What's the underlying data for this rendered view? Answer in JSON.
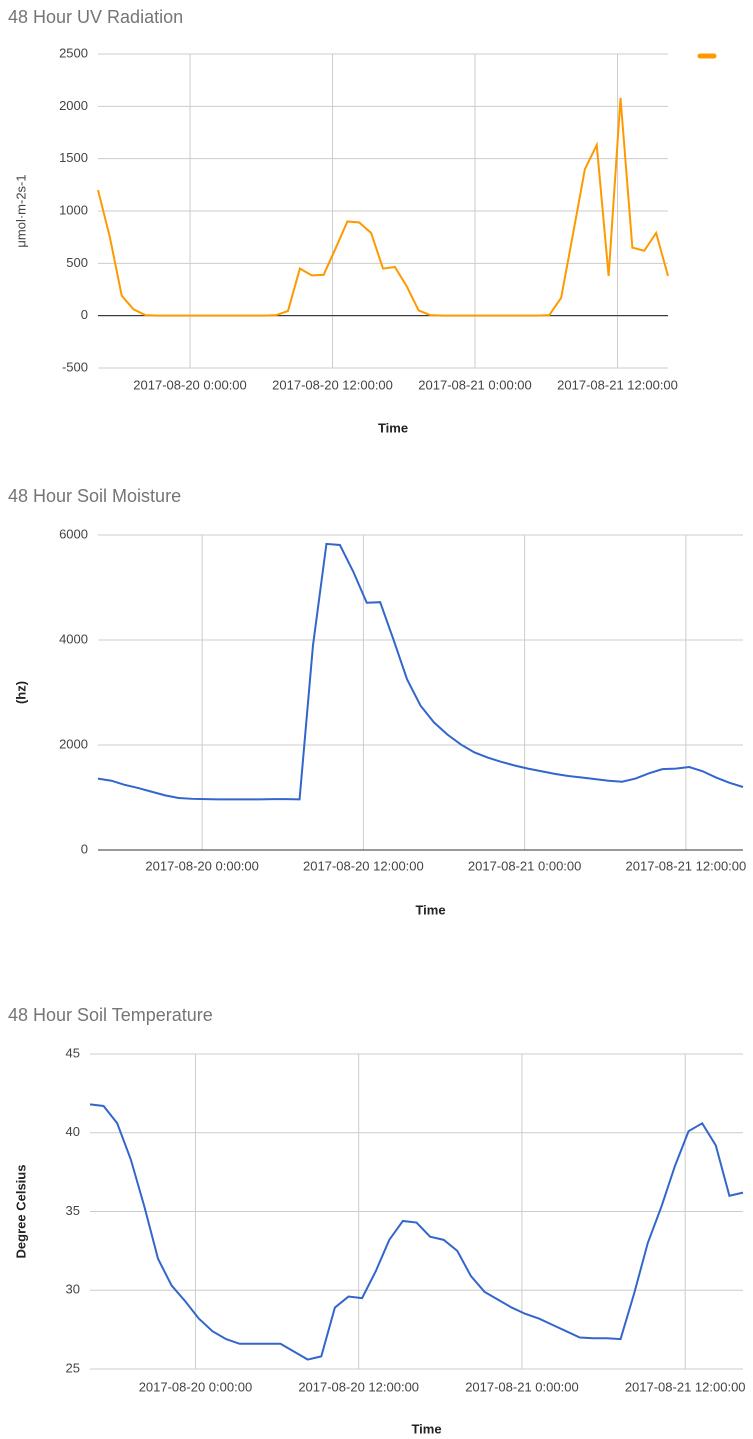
{
  "chart_data": [
    {
      "type": "line",
      "title": "48 Hour UV Radiation",
      "x_label": "Time",
      "y_label": "μmol·m-2s-1",
      "legend": "top-right",
      "x": [
        "2017-08-19 16:15:00",
        "2017-08-19 17:15:00",
        "2017-08-19 18:15:00",
        "2017-08-19 19:15:00",
        "2017-08-19 20:15:00",
        "2017-08-19 21:15:00",
        "2017-08-19 22:15:00",
        "2017-08-19 23:15:00",
        "2017-08-20 00:15:00",
        "2017-08-20 01:15:00",
        "2017-08-20 02:15:00",
        "2017-08-20 03:15:00",
        "2017-08-20 04:15:00",
        "2017-08-20 05:15:00",
        "2017-08-20 06:15:00",
        "2017-08-20 07:15:00",
        "2017-08-20 08:15:00",
        "2017-08-20 09:15:00",
        "2017-08-20 10:15:00",
        "2017-08-20 11:15:00",
        "2017-08-20 12:15:00",
        "2017-08-20 13:15:00",
        "2017-08-20 14:15:00",
        "2017-08-20 15:15:00",
        "2017-08-20 16:15:00",
        "2017-08-20 17:15:00",
        "2017-08-20 18:15:00",
        "2017-08-20 19:15:00",
        "2017-08-20 20:15:00",
        "2017-08-20 21:15:00",
        "2017-08-20 22:15:00",
        "2017-08-20 23:15:00",
        "2017-08-21 00:15:00",
        "2017-08-21 01:15:00",
        "2017-08-21 02:15:00",
        "2017-08-21 03:15:00",
        "2017-08-21 04:15:00",
        "2017-08-21 05:15:00",
        "2017-08-21 06:15:00",
        "2017-08-21 07:15:00",
        "2017-08-21 08:15:00",
        "2017-08-21 09:15:00",
        "2017-08-21 10:15:00",
        "2017-08-21 11:15:00",
        "2017-08-21 12:15:00",
        "2017-08-21 13:15:00",
        "2017-08-21 14:15:00",
        "2017-08-21 15:15:00",
        "2017-08-21 16:15:00"
      ],
      "series": [
        {
          "color": "#ff9900",
          "values": [
            1200,
            750,
            190,
            60,
            5,
            0,
            0,
            0,
            0,
            0,
            0,
            0,
            0,
            0,
            0,
            5,
            45,
            450,
            385,
            390,
            640,
            900,
            890,
            790,
            450,
            465,
            280,
            50,
            5,
            0,
            0,
            0,
            0,
            0,
            0,
            0,
            0,
            0,
            5,
            170,
            780,
            1400,
            1630,
            380,
            2080,
            650,
            620,
            790,
            380
          ]
        }
      ],
      "xlim": [
        "2017-08-19 16:15:00",
        "2017-08-21 16:15:00"
      ],
      "xticks": [
        "2017-08-20 0:00:00",
        "2017-08-20 12:00:00",
        "2017-08-21 0:00:00",
        "2017-08-21 12:00:00"
      ],
      "ylim": [
        -500,
        2500
      ],
      "yticks": [
        -500,
        0,
        500,
        1000,
        1500,
        2000,
        2500
      ],
      "grid": true
    },
    {
      "type": "line",
      "title": "48 Hour Soil Moisture",
      "x_label": "Time",
      "y_label": "(hz)",
      "x": [
        "2017-08-19 16:15:00",
        "2017-08-19 17:15:00",
        "2017-08-19 18:15:00",
        "2017-08-19 19:15:00",
        "2017-08-19 20:15:00",
        "2017-08-19 21:15:00",
        "2017-08-19 22:15:00",
        "2017-08-19 23:15:00",
        "2017-08-20 00:15:00",
        "2017-08-20 01:15:00",
        "2017-08-20 02:15:00",
        "2017-08-20 03:15:00",
        "2017-08-20 04:15:00",
        "2017-08-20 05:15:00",
        "2017-08-20 06:15:00",
        "2017-08-20 07:15:00",
        "2017-08-20 08:15:00",
        "2017-08-20 09:15:00",
        "2017-08-20 10:15:00",
        "2017-08-20 11:15:00",
        "2017-08-20 12:15:00",
        "2017-08-20 13:15:00",
        "2017-08-20 14:15:00",
        "2017-08-20 15:15:00",
        "2017-08-20 16:15:00",
        "2017-08-20 17:15:00",
        "2017-08-20 18:15:00",
        "2017-08-20 19:15:00",
        "2017-08-20 20:15:00",
        "2017-08-20 21:15:00",
        "2017-08-20 22:15:00",
        "2017-08-20 23:15:00",
        "2017-08-21 00:15:00",
        "2017-08-21 01:15:00",
        "2017-08-21 02:15:00",
        "2017-08-21 03:15:00",
        "2017-08-21 04:15:00",
        "2017-08-21 05:15:00",
        "2017-08-21 06:15:00",
        "2017-08-21 07:15:00",
        "2017-08-21 08:15:00",
        "2017-08-21 09:15:00",
        "2017-08-21 10:15:00",
        "2017-08-21 11:15:00",
        "2017-08-21 12:15:00",
        "2017-08-21 13:15:00",
        "2017-08-21 14:15:00",
        "2017-08-21 15:15:00",
        "2017-08-21 16:15:00"
      ],
      "series": [
        {
          "color": "#3366cc",
          "values": [
            1360,
            1320,
            1240,
            1180,
            1110,
            1040,
            990,
            975,
            970,
            965,
            965,
            965,
            965,
            970,
            970,
            965,
            3900,
            5830,
            5810,
            5300,
            4710,
            4720,
            4000,
            3250,
            2750,
            2430,
            2200,
            2010,
            1860,
            1760,
            1680,
            1610,
            1550,
            1500,
            1450,
            1410,
            1380,
            1350,
            1320,
            1300,
            1360,
            1460,
            1540,
            1550,
            1580,
            1500,
            1380,
            1280,
            1200
          ]
        }
      ],
      "xlim": [
        "2017-08-19 16:15:00",
        "2017-08-21 16:15:00"
      ],
      "xticks": [
        "2017-08-20 0:00:00",
        "2017-08-20 12:00:00",
        "2017-08-21 0:00:00",
        "2017-08-21 12:00:00"
      ],
      "ylim": [
        0,
        6000
      ],
      "yticks": [
        0,
        2000,
        4000,
        6000
      ],
      "grid": true
    },
    {
      "type": "line",
      "title": "48 Hour Soil Temperature",
      "x_label": "Time",
      "y_label": "Degree Celsius",
      "x": [
        "2017-08-19 16:15:00",
        "2017-08-19 17:15:00",
        "2017-08-19 18:15:00",
        "2017-08-19 19:15:00",
        "2017-08-19 20:15:00",
        "2017-08-19 21:15:00",
        "2017-08-19 22:15:00",
        "2017-08-19 23:15:00",
        "2017-08-20 00:15:00",
        "2017-08-20 01:15:00",
        "2017-08-20 02:15:00",
        "2017-08-20 03:15:00",
        "2017-08-20 04:15:00",
        "2017-08-20 05:15:00",
        "2017-08-20 06:15:00",
        "2017-08-20 07:15:00",
        "2017-08-20 08:15:00",
        "2017-08-20 09:15:00",
        "2017-08-20 10:15:00",
        "2017-08-20 11:15:00",
        "2017-08-20 12:15:00",
        "2017-08-20 13:15:00",
        "2017-08-20 14:15:00",
        "2017-08-20 15:15:00",
        "2017-08-20 16:15:00",
        "2017-08-20 17:15:00",
        "2017-08-20 18:15:00",
        "2017-08-20 19:15:00",
        "2017-08-20 20:15:00",
        "2017-08-20 21:15:00",
        "2017-08-20 22:15:00",
        "2017-08-20 23:15:00",
        "2017-08-21 00:15:00",
        "2017-08-21 01:15:00",
        "2017-08-21 02:15:00",
        "2017-08-21 03:15:00",
        "2017-08-21 04:15:00",
        "2017-08-21 05:15:00",
        "2017-08-21 06:15:00",
        "2017-08-21 07:15:00",
        "2017-08-21 08:15:00",
        "2017-08-21 09:15:00",
        "2017-08-21 10:15:00",
        "2017-08-21 11:15:00",
        "2017-08-21 12:15:00",
        "2017-08-21 13:15:00",
        "2017-08-21 14:15:00",
        "2017-08-21 15:15:00",
        "2017-08-21 16:15:00"
      ],
      "series": [
        {
          "color": "#3366cc",
          "values": [
            41.8,
            41.7,
            40.6,
            38.3,
            35.3,
            32.0,
            30.3,
            29.3,
            28.2,
            27.4,
            26.9,
            26.6,
            26.6,
            26.6,
            26.6,
            26.1,
            25.6,
            25.8,
            28.9,
            29.6,
            29.5,
            31.2,
            33.2,
            34.4,
            34.3,
            33.4,
            33.2,
            32.5,
            30.9,
            29.9,
            29.4,
            28.9,
            28.5,
            28.2,
            27.8,
            27.4,
            27.0,
            26.95,
            26.95,
            26.9,
            29.8,
            33.0,
            35.3,
            37.9,
            40.1,
            40.6,
            39.2,
            36.0,
            36.2
          ]
        }
      ],
      "xlim": [
        "2017-08-19 16:15:00",
        "2017-08-21 16:15:00"
      ],
      "xticks": [
        "2017-08-20 0:00:00",
        "2017-08-20 12:00:00",
        "2017-08-21 0:00:00",
        "2017-08-21 12:00:00"
      ],
      "ylim": [
        25,
        45
      ],
      "yticks": [
        25,
        30,
        35,
        40,
        45
      ],
      "grid": true
    }
  ]
}
